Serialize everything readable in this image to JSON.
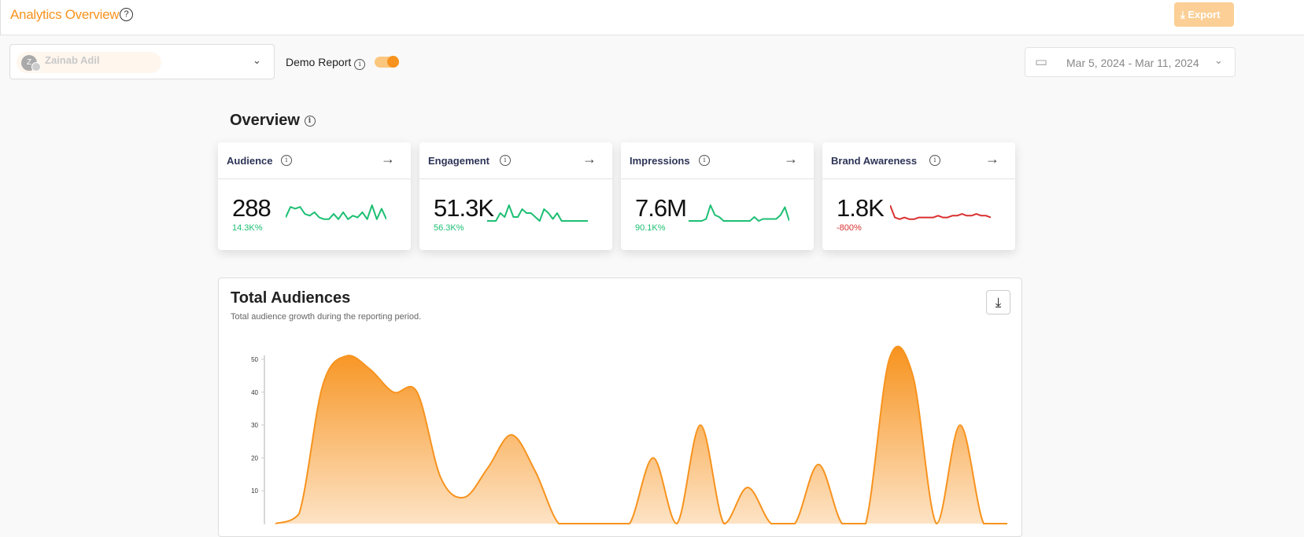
{
  "header": {
    "title": "Analytics Overview",
    "help_icon": "question-circle-icon",
    "export_label": "Export"
  },
  "filters": {
    "account_name": "Zainab Adil",
    "account_initial": "Z",
    "demo_label": "Demo Report",
    "demo_enabled": true,
    "date_range": "Mar 5, 2024 - Mar 11, 2024"
  },
  "overview": {
    "title": "Overview",
    "cards": [
      {
        "label": "Audience",
        "value": "288",
        "change": "14.3K%",
        "trend": "up",
        "color": "#1dbf73",
        "spark": [
          2,
          8,
          7,
          8,
          4,
          3,
          5,
          2,
          1,
          1,
          4,
          1,
          5,
          1,
          3,
          2,
          5,
          1,
          9,
          1,
          7,
          1
        ]
      },
      {
        "label": "Engagement",
        "value": "51.3K",
        "change": "56.3K%",
        "trend": "up",
        "color": "#1dbf73",
        "spark": [
          0,
          0,
          0,
          4,
          2,
          8,
          2,
          2,
          6,
          4,
          4,
          2,
          0,
          6,
          4,
          1,
          4,
          0,
          0,
          0,
          0,
          0,
          0,
          0
        ]
      },
      {
        "label": "Impressions",
        "value": "7.6M",
        "change": "90.1K%",
        "trend": "up",
        "color": "#1dbf73",
        "spark": [
          0,
          0,
          0,
          0,
          1,
          8,
          3,
          2,
          0,
          0,
          0,
          0,
          0,
          0,
          0,
          2,
          0,
          1,
          1,
          1,
          1,
          3,
          7,
          0
        ]
      },
      {
        "label": "Brand Awareness",
        "value": "1.8K",
        "change": "-800%",
        "trend": "down",
        "color": "#d93030",
        "spark": [
          9,
          2,
          1,
          2,
          1,
          1,
          2,
          2,
          2,
          2,
          3,
          2,
          2,
          3,
          3,
          4,
          3,
          3,
          4,
          3,
          3,
          2
        ]
      }
    ]
  },
  "total_audiences": {
    "title": "Total Audiences",
    "subtitle": "Total audience growth during the reporting period.",
    "download_icon": "download-icon"
  },
  "chart_data": {
    "type": "area",
    "title": "Total Audiences",
    "xlabel": "",
    "ylabel": "",
    "ylim": [
      0,
      50
    ],
    "yticks": [
      10,
      20,
      30,
      40,
      50
    ],
    "grid": false,
    "color": "#f7931e",
    "values": [
      0,
      3,
      42,
      51,
      47,
      40,
      40,
      14,
      8,
      17,
      27,
      16,
      0,
      0,
      0,
      0,
      20,
      0,
      30,
      0,
      11,
      0,
      0,
      18,
      0,
      0,
      50,
      45,
      0,
      30,
      0,
      0
    ]
  }
}
